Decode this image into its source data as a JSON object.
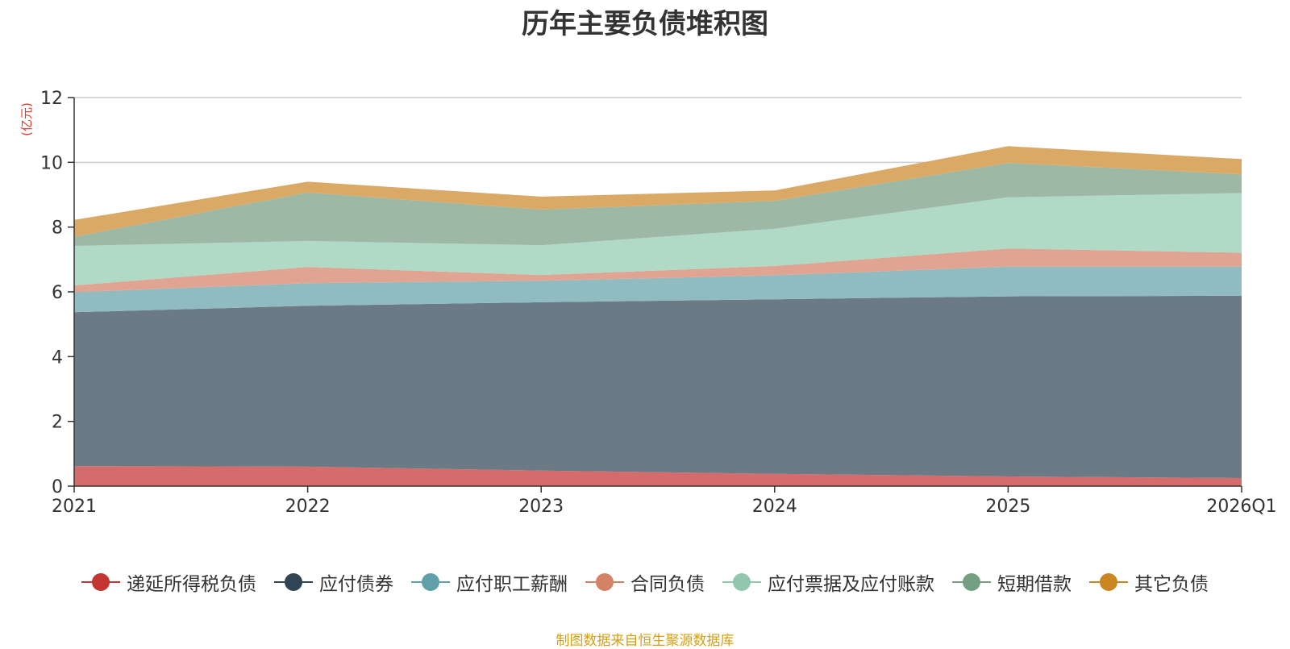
{
  "chart_data": {
    "type": "area",
    "stacked": true,
    "title": "历年主要负债堆积图",
    "ylabel": "(亿元)",
    "xlabel": "",
    "categories": [
      "2021",
      "2022",
      "2023",
      "2024",
      "2025",
      "2026Q1"
    ],
    "yticks": [
      "0",
      "2",
      "4",
      "6",
      "8",
      "10",
      "12"
    ],
    "ylim": [
      0,
      12
    ],
    "grid": true,
    "legend_position": "bottom",
    "series": [
      {
        "name": "递延所得税负债",
        "color": "#c23531",
        "fill": "#d66b6b",
        "values": [
          0.62,
          0.6,
          0.48,
          0.38,
          0.3,
          0.25
        ]
      },
      {
        "name": "应付债券",
        "color": "#2f4554",
        "fill": "#6b7a85",
        "values": [
          4.75,
          4.97,
          5.2,
          5.39,
          5.56,
          5.63
        ]
      },
      {
        "name": "应付职工薪酬",
        "color": "#61a0a8",
        "fill": "#8fbbc1",
        "values": [
          0.62,
          0.7,
          0.66,
          0.74,
          0.92,
          0.9
        ]
      },
      {
        "name": "合同负债",
        "color": "#d48265",
        "fill": "#e0a592",
        "values": [
          0.21,
          0.5,
          0.18,
          0.29,
          0.56,
          0.43
        ]
      },
      {
        "name": "应付票据及应付账款",
        "color": "#91c7ae",
        "fill": "#b0d9c6",
        "values": [
          1.22,
          0.8,
          0.92,
          1.15,
          1.58,
          1.84
        ]
      },
      {
        "name": "短期借款",
        "color": "#749f83",
        "fill": "#9db8a5",
        "values": [
          0.28,
          1.5,
          1.1,
          0.86,
          1.06,
          0.58
        ]
      },
      {
        "name": "其它负债",
        "color": "#ca8622",
        "fill": "#d9a965",
        "values": [
          0.52,
          0.33,
          0.4,
          0.32,
          0.52,
          0.47
        ]
      }
    ]
  },
  "footer": {
    "source": "制图数据来自恒生聚源数据库"
  }
}
